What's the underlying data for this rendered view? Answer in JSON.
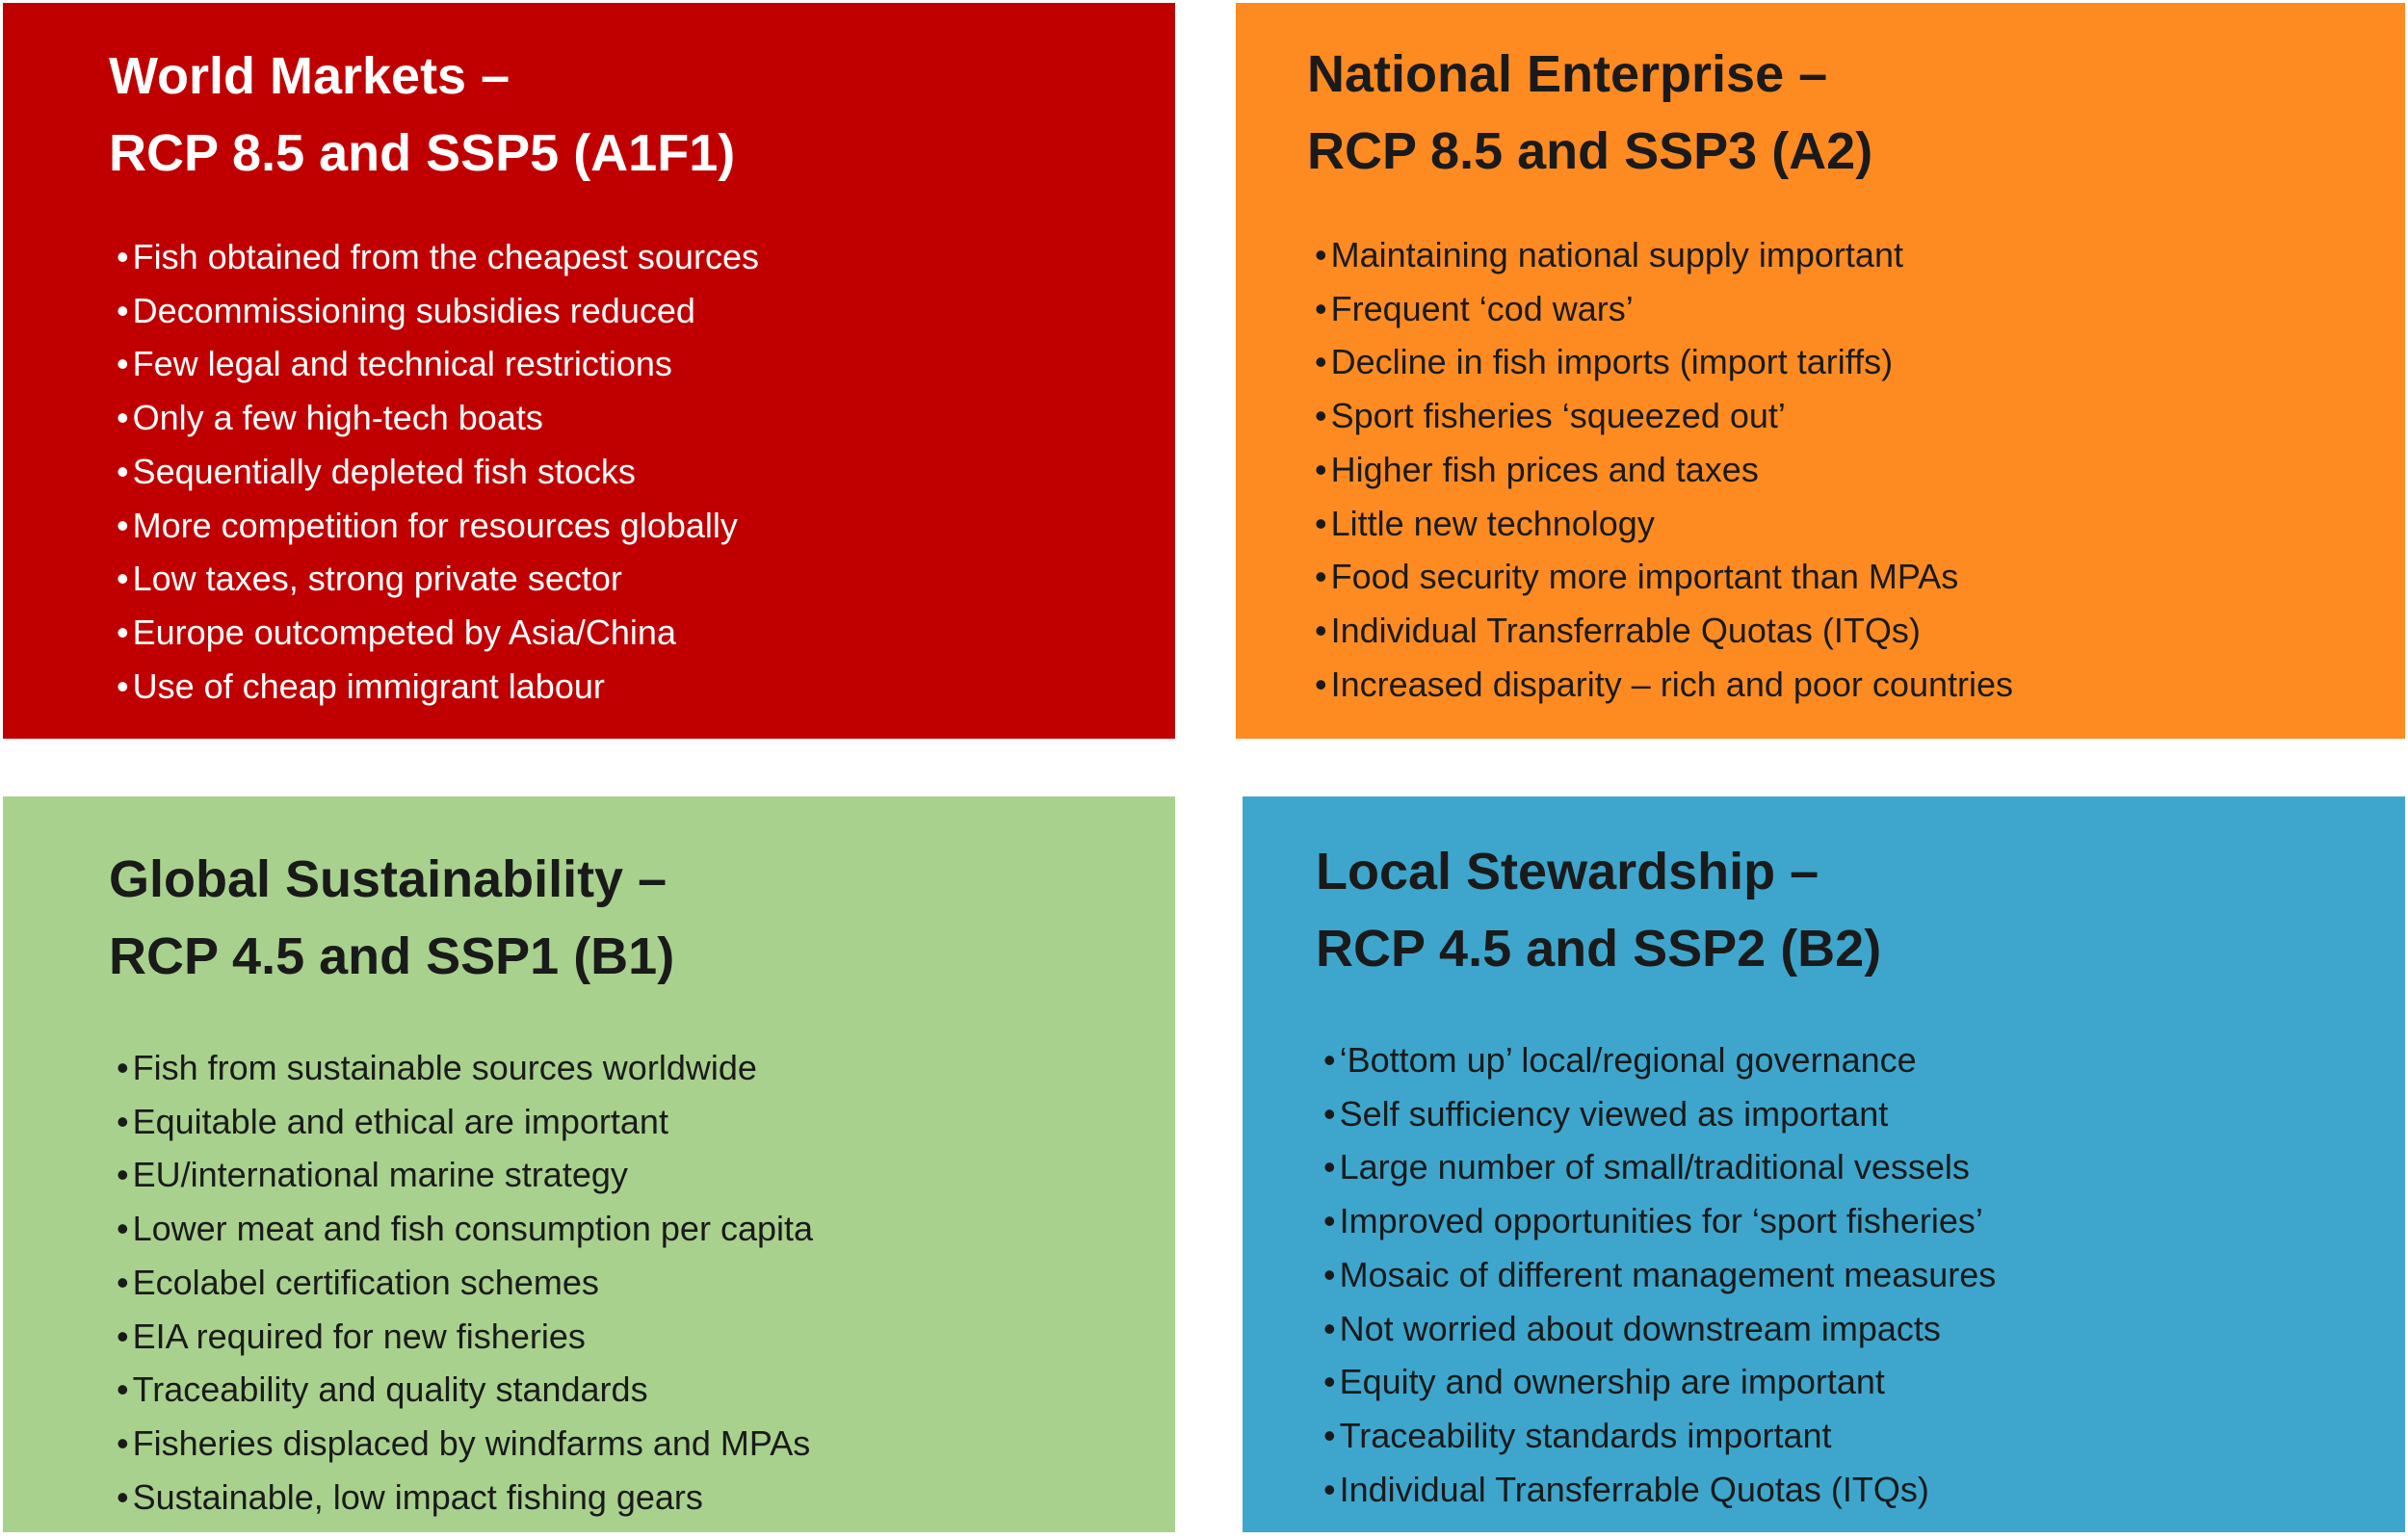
{
  "quadrants": [
    {
      "heading": "World Markets –",
      "subheading": "RCP 8.5 and SSP5 (A1F1)",
      "bullets": [
        "Fish obtained from the cheapest sources",
        "Decommissioning subsidies reduced",
        "Few legal and technical restrictions",
        "Only a few high-tech boats",
        "Sequentially depleted fish stocks",
        "More competition for resources globally",
        "Low taxes, strong private sector",
        "Europe outcompeted by Asia/China",
        "Use of cheap immigrant labour"
      ]
    },
    {
      "heading": "National Enterprise –",
      "subheading": "RCP 8.5 and SSP3 (A2)",
      "bullets": [
        "Maintaining national supply important",
        "Frequent ‘cod wars’",
        "Decline in fish imports (import tariffs)",
        "Sport fisheries ‘squeezed out’",
        "Higher fish prices and taxes",
        "Little new technology",
        "Food security more important than MPAs",
        "Individual Transferrable Quotas (ITQs)",
        "Increased disparity – rich and poor countries"
      ]
    },
    {
      "heading": "Global Sustainability –",
      "subheading": "RCP 4.5 and SSP1 (B1)",
      "bullets": [
        "Fish from sustainable sources worldwide",
        "Equitable and ethical are important",
        "EU/international marine strategy",
        "Lower meat and fish consumption per capita",
        "Ecolabel certification schemes",
        "EIA required for new fisheries",
        "Traceability and quality standards",
        "Fisheries displaced by windfarms and MPAs",
        "Sustainable, low impact fishing gears"
      ]
    },
    {
      "heading": "Local Stewardship –",
      "subheading": "RCP 4.5 and SSP2 (B2)",
      "bullets": [
        "‘Bottom up’ local/regional governance",
        "Self sufficiency viewed as important",
        "Large number of small/traditional vessels",
        "Improved opportunities for ‘sport fisheries’",
        "Mosaic of different management measures",
        "Not worried about downstream impacts",
        "Equity and ownership are important",
        "Traceability standards important",
        "Individual Transferrable Quotas (ITQs)"
      ]
    }
  ]
}
